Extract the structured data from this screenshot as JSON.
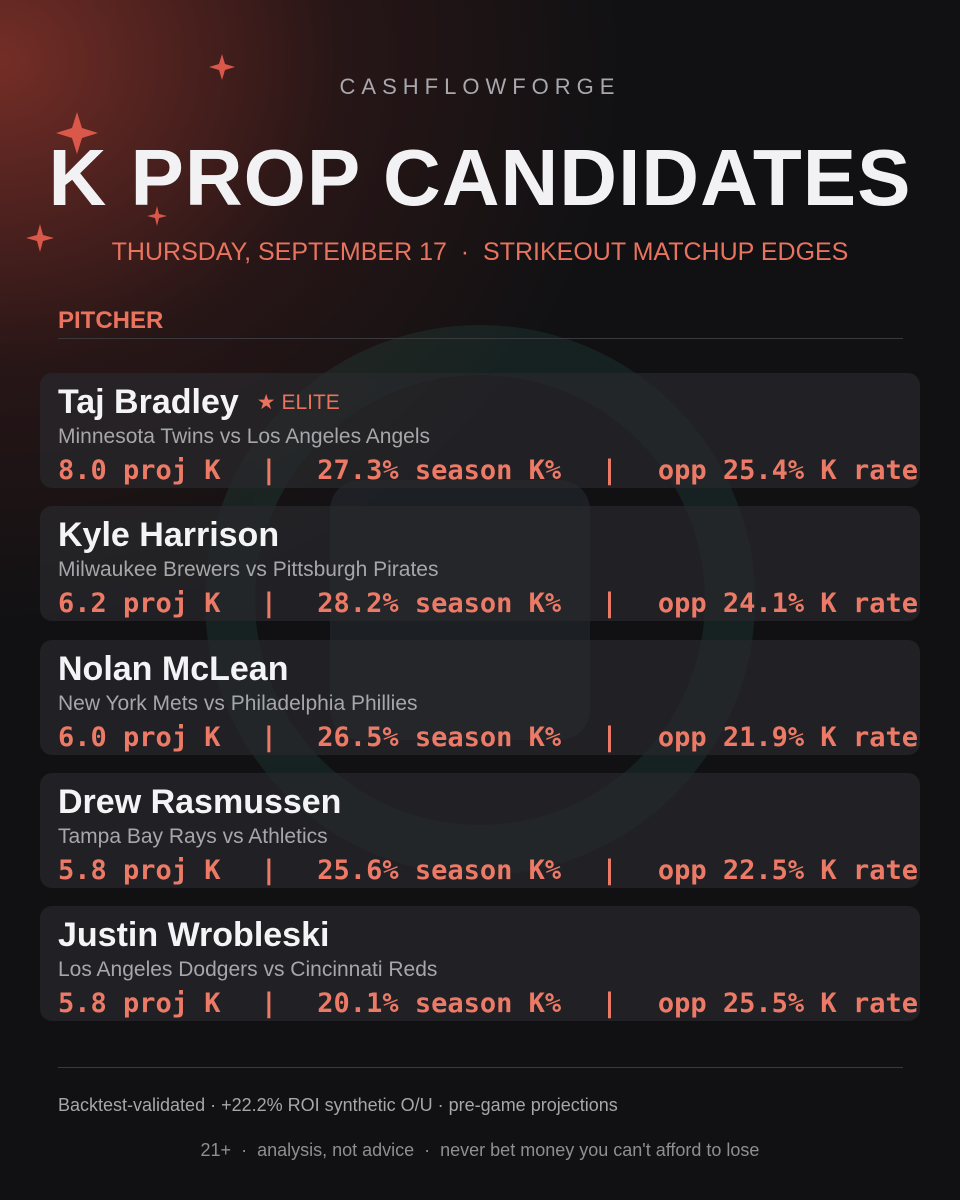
{
  "header": {
    "brand": "CASHFLOWFORGE",
    "title": "K PROP CANDIDATES",
    "subtitle": "THURSDAY, SEPTEMBER 17  ·  STRIKEOUT MATCHUP EDGES"
  },
  "table": {
    "column": "PITCHER",
    "separator": "|",
    "rows": [
      {
        "name": "Taj Bradley",
        "badge": "★ ELITE",
        "matchup": "Minnesota Twins vs Los Angeles Angels",
        "stats": [
          "8.0 proj K",
          "27.3% season K%",
          "opp 25.4% K rate"
        ]
      },
      {
        "name": "Kyle Harrison",
        "matchup": "Milwaukee Brewers vs Pittsburgh Pirates",
        "stats": [
          "6.2 proj K",
          "28.2% season K%",
          "opp 24.1% K rate"
        ]
      },
      {
        "name": "Nolan McLean",
        "matchup": "New York Mets vs Philadelphia Phillies",
        "stats": [
          "6.0 proj K",
          "26.5% season K%",
          "opp 21.9% K rate"
        ]
      },
      {
        "name": "Drew Rasmussen",
        "matchup": "Tampa Bay Rays vs Athletics",
        "stats": [
          "5.8 proj K",
          "25.6% season K%",
          "opp 22.5% K rate"
        ]
      },
      {
        "name": "Justin Wrobleski",
        "matchup": "Los Angeles Dodgers vs Cincinnati Reds",
        "stats": [
          "5.8 proj K",
          "20.1% season K%",
          "opp 25.5% K rate"
        ]
      }
    ]
  },
  "footer": {
    "note": "Backtest-validated · +22.2% ROI synthetic O/U · pre-game projections",
    "disclaimer": "21+  ·  analysis, not advice  ·  never bet money you can't afford to lose"
  }
}
